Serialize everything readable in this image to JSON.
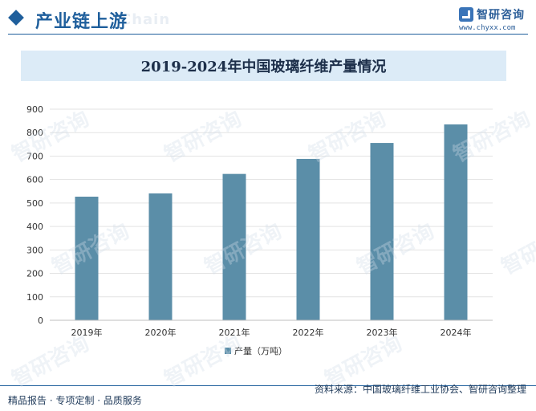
{
  "header": {
    "section_title": "产业链上游",
    "ghost_text": "Chain",
    "logo_text": "智研咨询",
    "logo_url": "www.chyxx.com"
  },
  "chart_data": {
    "type": "bar",
    "title": "2019-2024年中国玻璃纤维产量情况",
    "categories": [
      "2019年",
      "2020年",
      "2021年",
      "2022年",
      "2023年",
      "2024年"
    ],
    "series": [
      {
        "name": "产量（万吨）",
        "values": [
          527,
          541,
          624,
          688,
          756,
          835
        ],
        "color": "#5b8ea8"
      }
    ],
    "xlabel": "",
    "ylabel": "",
    "ylim": [
      0,
      900
    ],
    "yticks": [
      0,
      100,
      200,
      300,
      400,
      500,
      600,
      700,
      800,
      900
    ],
    "grid": true,
    "legend_position": "bottom"
  },
  "footer": {
    "left": "精品报告 · 专项定制 · 品质服务",
    "right": "资料来源：中国玻璃纤维工业协会、智研咨询整理"
  },
  "watermark_text": "智研咨询"
}
